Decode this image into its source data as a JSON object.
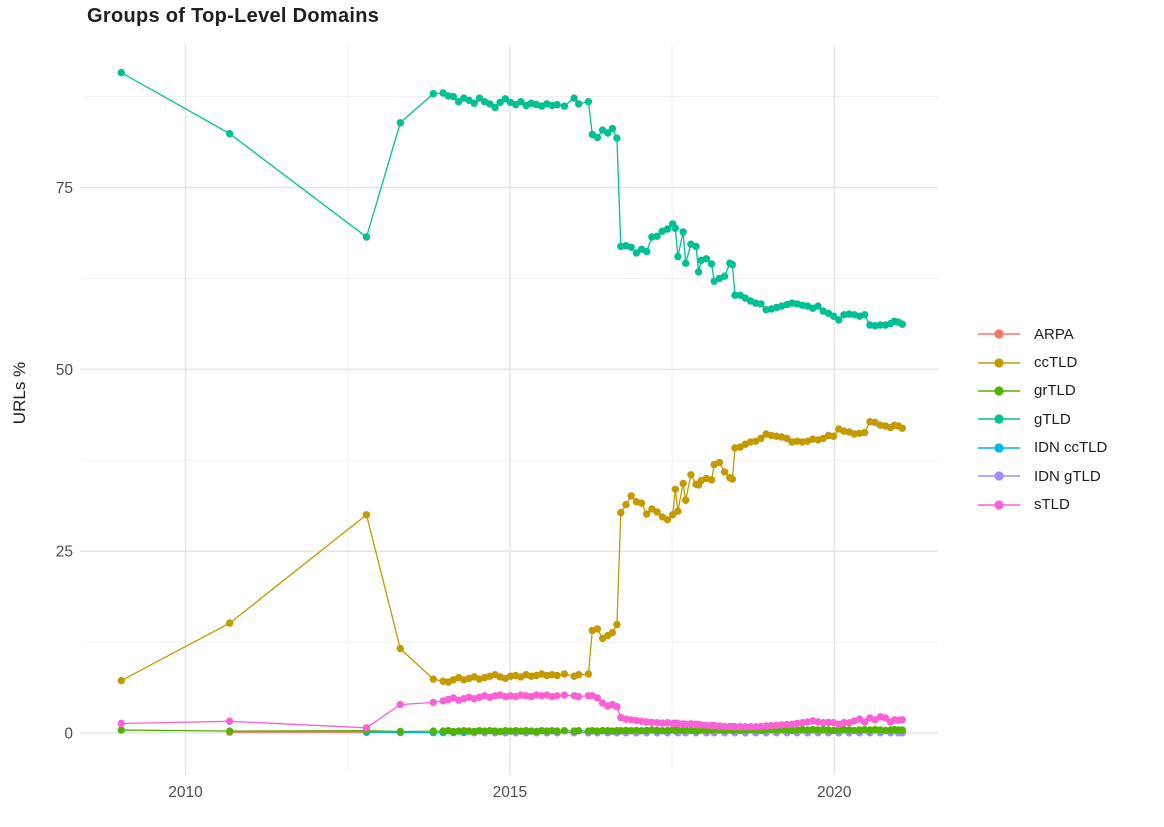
{
  "chart_data": {
    "type": "line",
    "title": "Groups of Top-Level Domains",
    "xlabel": "",
    "ylabel": "URLs %",
    "grid": true,
    "legend_position": "right",
    "xlim": [
      2008.45,
      2021.6
    ],
    "ylim": [
      -5.1,
      94.6
    ],
    "x_ticks": [
      2010,
      2015,
      2020
    ],
    "x_tick_labels": [
      "2010",
      "2015",
      "2020"
    ],
    "x_minor_ticks": [
      2012.5,
      2017.5
    ],
    "y_ticks": [
      0,
      25,
      50,
      75
    ],
    "y_tick_labels": [
      "0",
      "25",
      "50",
      "75"
    ],
    "y_minor_ticks": [
      12.5,
      37.5,
      62.5,
      87.5
    ],
    "colors": {
      "grid_major": "#e4e4e4",
      "grid_minor": "#efefef",
      "axis_text": "#4d4d4d",
      "title_text": "#1f1f1f"
    },
    "paint_order": [
      "ARPA",
      "IDN ccTLD",
      "IDN gTLD",
      "grTLD",
      "ccTLD",
      "gTLD",
      "sTLD"
    ],
    "series": [
      {
        "name": "ARPA",
        "color": "#F8766D",
        "x": [
          2010.68,
          2012.79,
          2013.31
        ],
        "y": [
          0.1,
          0.1,
          0.05
        ]
      },
      {
        "name": "ccTLD",
        "color": "#C49A00",
        "x": [
          2009.01,
          2010.68,
          2012.79,
          2013.31,
          2013.82,
          2013.97,
          2014.05,
          2014.13,
          2014.21,
          2014.29,
          2014.37,
          2014.45,
          2014.53,
          2014.61,
          2014.69,
          2014.77,
          2014.85,
          2014.93,
          2015.01,
          2015.09,
          2015.17,
          2015.25,
          2015.33,
          2015.41,
          2015.49,
          2015.57,
          2015.65,
          2015.73,
          2015.84,
          2015.99,
          2016.06,
          2016.21,
          2016.27,
          2016.35,
          2016.43,
          2016.51,
          2016.58,
          2016.65,
          2016.71,
          2016.79,
          2016.87,
          2016.95,
          2017.03,
          2017.11,
          2017.19,
          2017.27,
          2017.35,
          2017.43,
          2017.51,
          2017.55,
          2017.59,
          2017.67,
          2017.71,
          2017.79,
          2017.87,
          2017.91,
          2017.95,
          2018.03,
          2018.11,
          2018.15,
          2018.23,
          2018.31,
          2018.39,
          2018.43,
          2018.47,
          2018.55,
          2018.63,
          2018.71,
          2018.79,
          2018.87,
          2018.95,
          2019.03,
          2019.11,
          2019.19,
          2019.27,
          2019.35,
          2019.43,
          2019.51,
          2019.59,
          2019.67,
          2019.75,
          2019.83,
          2019.91,
          2019.99,
          2020.07,
          2020.15,
          2020.23,
          2020.31,
          2020.39,
          2020.47,
          2020.55,
          2020.63,
          2020.71,
          2020.79,
          2020.87,
          2020.93,
          2020.99,
          2021.05
        ],
        "y": [
          7.2,
          15.1,
          30.0,
          11.6,
          7.4,
          7.1,
          7.0,
          7.3,
          7.6,
          7.3,
          7.5,
          7.7,
          7.4,
          7.6,
          7.8,
          8.0,
          7.7,
          7.5,
          7.8,
          7.9,
          7.7,
          8.0,
          7.8,
          7.9,
          8.1,
          7.9,
          8.0,
          7.9,
          8.1,
          7.8,
          8.0,
          8.1,
          14.1,
          14.3,
          13.0,
          13.4,
          13.8,
          14.9,
          30.3,
          31.4,
          32.6,
          31.8,
          31.6,
          30.1,
          30.8,
          30.4,
          29.7,
          29.3,
          30.0,
          33.5,
          30.5,
          34.3,
          32.0,
          35.5,
          34.2,
          34.1,
          34.7,
          35.0,
          34.8,
          36.9,
          37.2,
          35.9,
          35.1,
          34.9,
          39.2,
          39.3,
          39.7,
          40.0,
          40.1,
          40.5,
          41.1,
          40.9,
          40.8,
          40.7,
          40.5,
          40.0,
          40.1,
          40.0,
          40.1,
          40.4,
          40.3,
          40.5,
          40.9,
          40.8,
          41.8,
          41.5,
          41.4,
          41.1,
          41.2,
          41.3,
          42.8,
          42.7,
          42.3,
          42.2,
          42.0,
          42.3,
          42.2,
          41.9
        ]
      },
      {
        "name": "grTLD",
        "color": "#53B400",
        "x": [
          2009.01,
          2010.68,
          2012.79,
          2013.31,
          2013.82,
          2013.97,
          2014.05,
          2014.13,
          2014.21,
          2014.29,
          2014.37,
          2014.45,
          2014.53,
          2014.61,
          2014.69,
          2014.77,
          2014.85,
          2014.93,
          2015.01,
          2015.09,
          2015.17,
          2015.25,
          2015.33,
          2015.41,
          2015.49,
          2015.57,
          2015.65,
          2015.73,
          2015.84,
          2015.99,
          2016.06,
          2016.21,
          2016.27,
          2016.35,
          2016.43,
          2016.51,
          2016.58,
          2016.65,
          2016.71,
          2016.79,
          2016.87,
          2016.95,
          2017.03,
          2017.11,
          2017.19,
          2017.27,
          2017.35,
          2017.43,
          2017.51,
          2017.55,
          2017.59,
          2017.67,
          2017.71,
          2017.79,
          2017.87,
          2017.91,
          2017.95,
          2018.03,
          2018.11,
          2018.15,
          2018.23,
          2018.31,
          2018.39,
          2018.43,
          2018.47,
          2018.55,
          2018.63,
          2018.71,
          2018.79,
          2018.87,
          2018.95,
          2019.03,
          2019.11,
          2019.19,
          2019.27,
          2019.35,
          2019.43,
          2019.51,
          2019.59,
          2019.67,
          2019.75,
          2019.83,
          2019.91,
          2019.99,
          2020.07,
          2020.15,
          2020.23,
          2020.31,
          2020.39,
          2020.47,
          2020.55,
          2020.63,
          2020.71,
          2020.79,
          2020.87,
          2020.93,
          2020.99,
          2021.05
        ],
        "y": [
          0.4,
          0.25,
          0.3,
          0.2,
          0.25,
          0.25,
          0.3,
          0.2,
          0.25,
          0.3,
          0.25,
          0.2,
          0.3,
          0.25,
          0.3,
          0.25,
          0.2,
          0.3,
          0.25,
          0.3,
          0.25,
          0.3,
          0.25,
          0.2,
          0.3,
          0.25,
          0.3,
          0.25,
          0.3,
          0.25,
          0.3,
          0.25,
          0.3,
          0.25,
          0.3,
          0.3,
          0.25,
          0.3,
          0.3,
          0.35,
          0.3,
          0.35,
          0.3,
          0.35,
          0.4,
          0.35,
          0.3,
          0.35,
          0.4,
          0.35,
          0.4,
          0.35,
          0.4,
          0.35,
          0.3,
          0.35,
          0.4,
          0.35,
          0.4,
          0.45,
          0.4,
          0.35,
          0.4,
          0.35,
          0.4,
          0.35,
          0.4,
          0.45,
          0.4,
          0.35,
          0.4,
          0.45,
          0.4,
          0.45,
          0.4,
          0.35,
          0.4,
          0.45,
          0.4,
          0.45,
          0.4,
          0.45,
          0.4,
          0.35,
          0.4,
          0.45,
          0.4,
          0.35,
          0.4,
          0.45,
          0.4,
          0.45,
          0.4,
          0.35,
          0.4,
          0.45,
          0.4,
          0.4
        ]
      },
      {
        "name": "gTLD",
        "color": "#00C094",
        "x": [
          2009.01,
          2010.68,
          2012.79,
          2013.31,
          2013.82,
          2013.97,
          2014.05,
          2014.13,
          2014.21,
          2014.29,
          2014.37,
          2014.45,
          2014.53,
          2014.61,
          2014.69,
          2014.77,
          2014.85,
          2014.93,
          2015.01,
          2015.09,
          2015.17,
          2015.25,
          2015.33,
          2015.41,
          2015.49,
          2015.57,
          2015.65,
          2015.73,
          2015.84,
          2015.99,
          2016.06,
          2016.21,
          2016.27,
          2016.35,
          2016.43,
          2016.51,
          2016.58,
          2016.65,
          2016.71,
          2016.79,
          2016.87,
          2016.95,
          2017.03,
          2017.11,
          2017.19,
          2017.27,
          2017.35,
          2017.43,
          2017.51,
          2017.55,
          2017.59,
          2017.67,
          2017.71,
          2017.79,
          2017.87,
          2017.91,
          2017.95,
          2018.03,
          2018.11,
          2018.15,
          2018.23,
          2018.31,
          2018.39,
          2018.43,
          2018.47,
          2018.55,
          2018.63,
          2018.71,
          2018.79,
          2018.87,
          2018.95,
          2019.03,
          2019.11,
          2019.19,
          2019.27,
          2019.35,
          2019.43,
          2019.51,
          2019.59,
          2019.67,
          2019.75,
          2019.83,
          2019.91,
          2019.99,
          2020.07,
          2020.15,
          2020.23,
          2020.31,
          2020.39,
          2020.47,
          2020.55,
          2020.63,
          2020.71,
          2020.79,
          2020.87,
          2020.93,
          2020.99,
          2021.05
        ],
        "y": [
          90.8,
          82.4,
          68.2,
          83.9,
          87.9,
          88.0,
          87.6,
          87.5,
          86.8,
          87.3,
          87.0,
          86.6,
          87.3,
          86.8,
          86.5,
          86.0,
          86.7,
          87.2,
          86.7,
          86.4,
          86.8,
          86.3,
          86.6,
          86.4,
          86.2,
          86.5,
          86.3,
          86.4,
          86.2,
          87.3,
          86.5,
          86.8,
          82.3,
          81.9,
          82.9,
          82.5,
          83.1,
          81.8,
          66.9,
          67.0,
          66.8,
          66.0,
          66.5,
          66.2,
          68.2,
          68.3,
          69.0,
          69.3,
          70.0,
          69.4,
          65.5,
          68.9,
          64.6,
          67.2,
          66.9,
          63.4,
          65.0,
          65.2,
          64.5,
          62.1,
          62.5,
          62.8,
          64.6,
          64.4,
          60.2,
          60.2,
          59.8,
          59.4,
          59.1,
          59.0,
          58.2,
          58.3,
          58.5,
          58.7,
          58.9,
          59.1,
          59.0,
          58.8,
          58.7,
          58.4,
          58.7,
          58.0,
          57.7,
          57.3,
          56.8,
          57.5,
          57.6,
          57.5,
          57.3,
          57.5,
          56.1,
          56.0,
          56.1,
          56.1,
          56.3,
          56.6,
          56.5,
          56.2
        ]
      },
      {
        "name": "IDN ccTLD",
        "color": "#00B6EB",
        "x": [
          2012.79,
          2013.31,
          2013.82,
          2013.97,
          2014.13,
          2014.29,
          2014.45,
          2014.61,
          2014.77,
          2014.93,
          2015.09,
          2015.25,
          2015.41,
          2015.57,
          2015.73,
          2015.99,
          2016.21,
          2016.35,
          2016.51,
          2016.65,
          2016.79,
          2016.95,
          2017.11,
          2017.27,
          2017.43,
          2017.59,
          2017.71,
          2017.87,
          2018.03,
          2018.15,
          2018.31,
          2018.47,
          2018.63,
          2018.79,
          2018.95,
          2019.11,
          2019.27,
          2019.43,
          2019.59,
          2019.75,
          2019.91,
          2020.07,
          2020.23,
          2020.39,
          2020.55,
          2020.71,
          2020.87,
          2020.99,
          2021.05
        ],
        "y": [
          0.1,
          0.08,
          0.05,
          0.05,
          0.05,
          0.05,
          0.05,
          0.05,
          0.05,
          0.05,
          0.05,
          0.05,
          0.05,
          0.05,
          0.05,
          0.05,
          0.05,
          0.05,
          0.05,
          0.05,
          0.05,
          0.05,
          0.05,
          0.05,
          0.05,
          0.05,
          0.05,
          0.05,
          0.05,
          0.05,
          0.05,
          0.05,
          0.05,
          0.05,
          0.05,
          0.05,
          0.05,
          0.05,
          0.05,
          0.05,
          0.05,
          0.05,
          0.05,
          0.05,
          0.05,
          0.05,
          0.05,
          0.05,
          0.05
        ]
      },
      {
        "name": "IDN gTLD",
        "color": "#A58AFF",
        "x": [
          2014.45,
          2014.61,
          2014.77,
          2014.93,
          2015.09,
          2015.25,
          2015.41,
          2015.57,
          2015.73,
          2015.99,
          2016.21,
          2016.35,
          2016.51,
          2016.65,
          2016.79,
          2016.95,
          2017.11,
          2017.27,
          2017.43,
          2017.59,
          2017.71,
          2017.87,
          2018.03,
          2018.15,
          2018.31,
          2018.47,
          2018.63,
          2018.79,
          2018.95,
          2019.11,
          2019.27,
          2019.43,
          2019.59,
          2019.75,
          2019.91,
          2020.07,
          2020.23,
          2020.39,
          2020.55,
          2020.71,
          2020.87,
          2020.99,
          2021.05
        ],
        "y": [
          0.02,
          0.02,
          0.02,
          0.02,
          0.02,
          0.02,
          0.02,
          0.02,
          0.02,
          0.02,
          0.02,
          0.02,
          0.02,
          0.02,
          0.02,
          0.02,
          0.02,
          0.02,
          0.02,
          0.02,
          0.02,
          0.02,
          0.02,
          0.02,
          0.02,
          0.02,
          0.02,
          0.02,
          0.02,
          0.02,
          0.02,
          0.02,
          0.02,
          0.02,
          0.02,
          0.02,
          0.02,
          0.02,
          0.02,
          0.02,
          0.02,
          0.02,
          0.02
        ]
      },
      {
        "name": "sTLD",
        "color": "#FB61D7",
        "x": [
          2009.01,
          2010.68,
          2012.79,
          2013.31,
          2013.82,
          2013.97,
          2014.05,
          2014.13,
          2014.21,
          2014.29,
          2014.37,
          2014.45,
          2014.53,
          2014.61,
          2014.69,
          2014.77,
          2014.85,
          2014.93,
          2015.01,
          2015.09,
          2015.17,
          2015.25,
          2015.33,
          2015.41,
          2015.49,
          2015.57,
          2015.65,
          2015.73,
          2015.84,
          2015.99,
          2016.06,
          2016.21,
          2016.27,
          2016.35,
          2016.43,
          2016.51,
          2016.58,
          2016.65,
          2016.71,
          2016.79,
          2016.87,
          2016.95,
          2017.03,
          2017.11,
          2017.19,
          2017.27,
          2017.35,
          2017.43,
          2017.51,
          2017.55,
          2017.59,
          2017.67,
          2017.71,
          2017.79,
          2017.87,
          2017.91,
          2017.95,
          2018.03,
          2018.11,
          2018.15,
          2018.23,
          2018.31,
          2018.39,
          2018.43,
          2018.47,
          2018.55,
          2018.63,
          2018.71,
          2018.79,
          2018.87,
          2018.95,
          2019.03,
          2019.11,
          2019.19,
          2019.27,
          2019.35,
          2019.43,
          2019.51,
          2019.59,
          2019.67,
          2019.75,
          2019.83,
          2019.91,
          2019.99,
          2020.07,
          2020.15,
          2020.23,
          2020.31,
          2020.39,
          2020.47,
          2020.55,
          2020.63,
          2020.71,
          2020.79,
          2020.87,
          2020.93,
          2020.99,
          2021.05
        ],
        "y": [
          1.3,
          1.6,
          0.7,
          3.9,
          4.2,
          4.4,
          4.6,
          4.8,
          4.5,
          4.7,
          4.9,
          4.7,
          4.9,
          5.1,
          4.9,
          5.1,
          5.2,
          5.0,
          5.1,
          5.0,
          5.2,
          5.1,
          5.0,
          5.2,
          5.1,
          5.2,
          5.0,
          5.1,
          5.2,
          5.1,
          5.0,
          5.1,
          5.1,
          4.8,
          4.1,
          3.7,
          3.9,
          3.6,
          2.1,
          1.9,
          1.8,
          1.7,
          1.6,
          1.5,
          1.45,
          1.4,
          1.35,
          1.4,
          1.3,
          1.35,
          1.3,
          1.25,
          1.2,
          1.25,
          1.2,
          1.15,
          1.1,
          1.05,
          1.0,
          1.0,
          0.95,
          0.9,
          0.9,
          0.85,
          0.85,
          0.85,
          0.85,
          0.85,
          0.85,
          0.9,
          0.95,
          1.0,
          1.05,
          1.1,
          1.15,
          1.2,
          1.3,
          1.4,
          1.5,
          1.65,
          1.5,
          1.4,
          1.45,
          1.4,
          1.2,
          1.4,
          1.4,
          1.65,
          1.9,
          1.5,
          2.05,
          1.8,
          2.2,
          2.05,
          1.5,
          1.8,
          1.75,
          1.8
        ]
      }
    ]
  }
}
